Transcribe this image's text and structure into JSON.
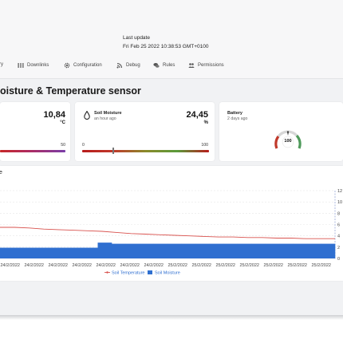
{
  "header": {
    "last_update_label": "Last update",
    "last_update_value": "Fri Feb 25 2022 10:38:53 GMT+0100"
  },
  "tabs": [
    {
      "label": "ry",
      "icon": "none"
    },
    {
      "label": "Downlinks",
      "icon": "bars-icon"
    },
    {
      "label": "Configuration",
      "icon": "gear-icon"
    },
    {
      "label": "Debug",
      "icon": "rss-icon"
    },
    {
      "label": "Rules",
      "icon": "chat-icon"
    },
    {
      "label": "Permissions",
      "icon": "users-icon"
    }
  ],
  "page_title": "oisture & Temperature sensor",
  "cards": {
    "temperature": {
      "value": "10,84",
      "unit": "°C",
      "scale_max": "50",
      "level": 0.22
    },
    "moisture": {
      "title": "Soil Moisture",
      "subtitle": "an hour ago",
      "value": "24,45",
      "unit": "%",
      "scale_min": "0",
      "scale_max": "100",
      "level": 0.245
    },
    "battery": {
      "title": "Battery",
      "subtitle": "2 days ago",
      "gauge_value": "100"
    }
  },
  "chart": {
    "title_fragment": "e",
    "chart_data": {
      "type": "bar+line",
      "title": "",
      "x_labels": [
        "24/2/2022",
        "24/2/2022",
        "24/2/2022",
        "24/2/2022",
        "24/2/2022",
        "24/2/2022",
        "24/2/2022",
        "25/2/2022",
        "25/2/2022",
        "25/2/2022",
        "25/2/2022",
        "25/2/2022",
        "25/2/2022",
        "25/2/2022"
      ],
      "legend": [
        {
          "name": "Soil Temperature",
          "color": "#d9534f",
          "type": "line"
        },
        {
          "name": "Soil Moisture",
          "color": "#2f6fd0",
          "type": "bar"
        }
      ],
      "right_axis_ticks": [
        "0",
        "2",
        "4",
        "6",
        "8",
        "10",
        "12"
      ],
      "right_axis_range": [
        0,
        12
      ],
      "series": [
        {
          "name": "Soil Temperature",
          "values": [
            5.5,
            5.5,
            5.4,
            5.2,
            5.1,
            5.0,
            4.9,
            4.8,
            4.6,
            4.4,
            4.3,
            4.2,
            4.1,
            4.0,
            3.9,
            3.8,
            3.8,
            3.7,
            3.7,
            3.6,
            3.6,
            3.5,
            3.5,
            3.5
          ]
        },
        {
          "name": "Soil Moisture",
          "values": [
            1.9,
            1.9,
            1.9,
            1.9,
            1.9,
            1.9,
            1.9,
            2.8,
            2.6,
            2.6,
            2.6,
            2.6,
            2.6,
            2.6,
            2.6,
            2.6,
            2.6,
            2.6,
            2.6,
            2.6,
            2.6,
            2.6,
            2.6,
            2.6
          ]
        }
      ]
    }
  },
  "colors": {
    "accent_red": "#b1161a",
    "gauge_green": "#4f9a5b",
    "bar_blue": "#2f6fd0",
    "line_red": "#d9534f"
  }
}
